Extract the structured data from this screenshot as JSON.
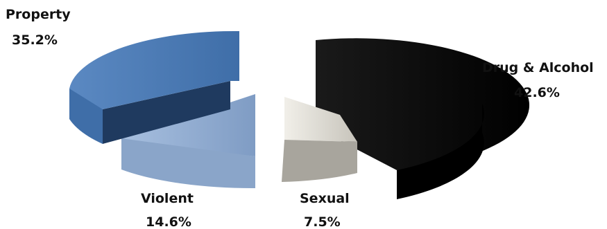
{
  "chart_data": {
    "type": "pie",
    "style": "3d-exploded",
    "slices": [
      {
        "label": "Drug & Alcohol",
        "value": 42.6,
        "display": "42.6%",
        "color": "#000000"
      },
      {
        "label": "Sexual",
        "value": 7.5,
        "display": "7.5%",
        "color": "#dcdad3"
      },
      {
        "label": "Violent",
        "value": 14.6,
        "display": "14.6%",
        "color": "#94afd3"
      },
      {
        "label": "Property",
        "value": 35.2,
        "display": "35.2%",
        "color": "#4a79b4"
      }
    ],
    "legend": "none"
  }
}
